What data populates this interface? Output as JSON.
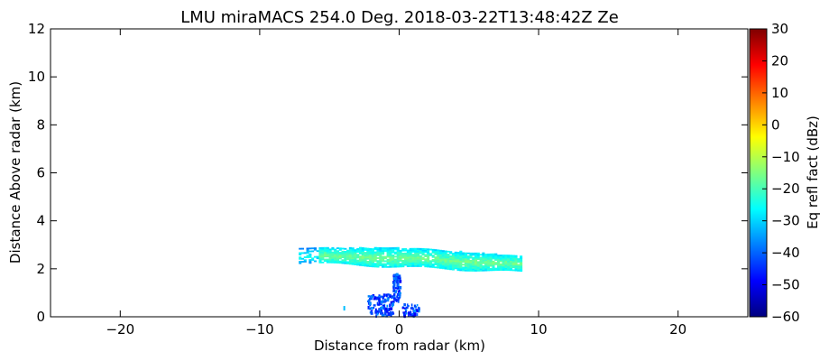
{
  "chart_data": {
    "type": "heatmap",
    "title": "LMU miraMACS 254.0 Deg. 2018-03-22T13:48:42Z  Ze",
    "xlabel": "Distance from radar (km)",
    "ylabel": "Distance Above radar  (km)",
    "xlim": [
      -25,
      25
    ],
    "ylim": [
      0,
      12
    ],
    "xticks": [
      -20,
      -10,
      0,
      10,
      20
    ],
    "yticks": [
      0,
      2,
      4,
      6,
      8,
      10,
      12
    ],
    "colorbar": {
      "label": "Eq refl fact (dBz)",
      "range": [
        -60,
        30
      ],
      "ticks": [
        -60,
        -50,
        -40,
        -30,
        -20,
        -10,
        0,
        10,
        20,
        30
      ],
      "colormap": "jet"
    },
    "regions": [
      {
        "description": "cloud layer",
        "x_range": [
          -7.2,
          8.8
        ],
        "y_range": [
          1.8,
          3.0
        ],
        "dbz_range": [
          -35,
          -15
        ]
      },
      {
        "description": "near-surface clutter",
        "x_range": [
          -2.5,
          1.5
        ],
        "y_range": [
          0.0,
          1.8
        ],
        "dbz_range": [
          -50,
          -35
        ]
      }
    ]
  }
}
